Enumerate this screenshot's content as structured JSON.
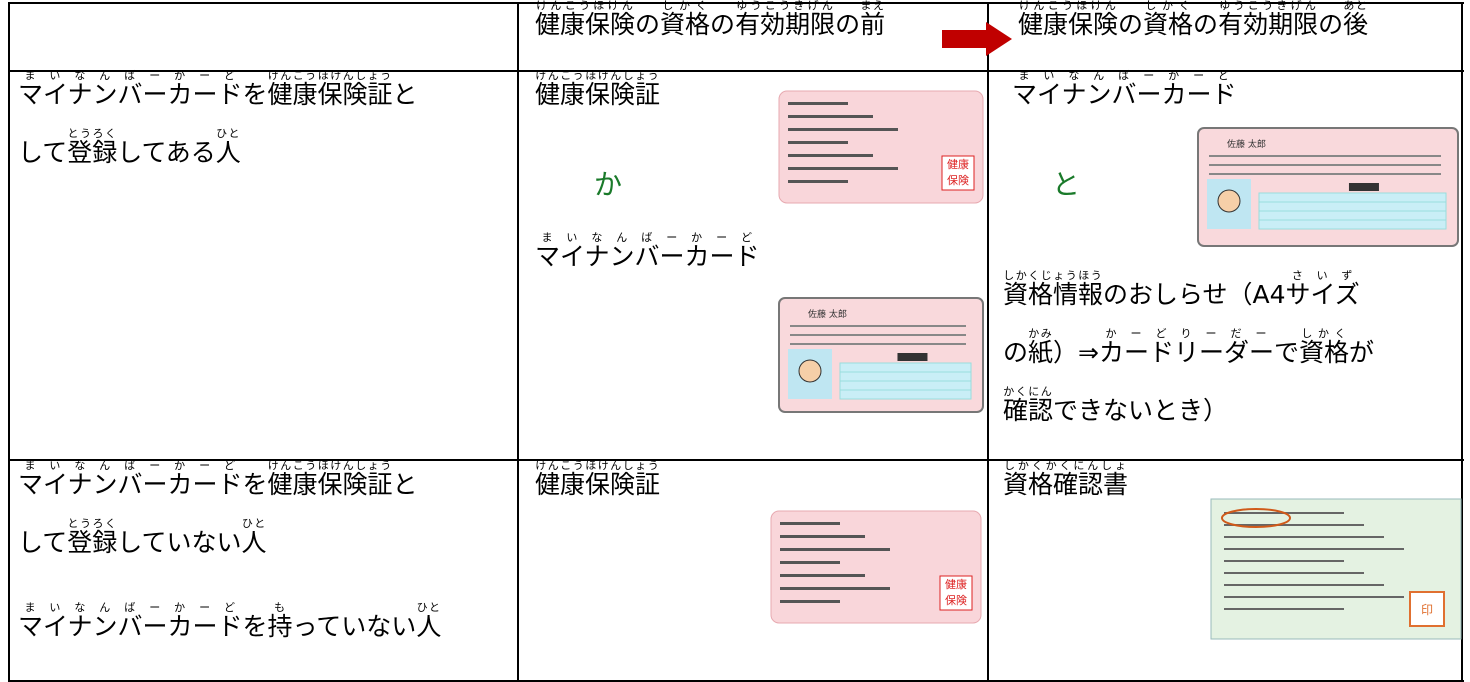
{
  "header": {
    "before": [
      [
        {
          "text": "健康保険",
          "ruby": "けんこうほけん"
        },
        {
          "text": "の"
        },
        {
          "text": "資格",
          "ruby": "しかく"
        },
        {
          "text": "の"
        },
        {
          "text": "有効期限",
          "ruby": "ゆうこうきげん"
        },
        {
          "text": "の"
        },
        {
          "text": "前",
          "ruby": "まえ"
        }
      ]
    ],
    "after": [
      [
        {
          "text": "健康保険",
          "ruby": "けんこうほけん"
        },
        {
          "text": "の"
        },
        {
          "text": "資格",
          "ruby": "しかく"
        },
        {
          "text": "の"
        },
        {
          "text": "有効期限",
          "ruby": "ゆうこうきげん"
        },
        {
          "text": "の"
        },
        {
          "text": "後",
          "ruby": "あと"
        }
      ]
    ]
  },
  "rows": [
    {
      "condition": [
        [
          {
            "text": "マイナンバーカード",
            "ruby": "まいなんばーかーど"
          },
          {
            "text": "を"
          },
          {
            "text": "健康保険証",
            "ruby": "けんこうほけんしょう"
          },
          {
            "text": "と"
          }
        ],
        [
          {
            "text": "して"
          },
          {
            "text": "登録",
            "ruby": "とうろく"
          },
          {
            "text": "してある"
          },
          {
            "text": "人",
            "ruby": "ひと"
          }
        ]
      ],
      "before": {
        "first": [
          [
            {
              "text": "健康保険証",
              "ruby": "けんこうほけんしょう"
            }
          ]
        ],
        "connector": "か",
        "second": [
          [
            {
              "text": "マイナンバーカード",
              "ruby": "まいなんばーかーど"
            }
          ]
        ]
      },
      "after": {
        "first": [
          [
            {
              "text": "マイナンバーカード",
              "ruby": "まいなんばーかーど"
            }
          ]
        ],
        "connector": "と",
        "note": [
          [
            {
              "text": "資格情報",
              "ruby": "しかくじょうほう"
            },
            {
              "text": "のおしらせ（A4"
            },
            {
              "text": "サイズ",
              "ruby": "さいず"
            }
          ],
          [
            {
              "text": "の"
            },
            {
              "text": "紙",
              "ruby": "かみ"
            },
            {
              "text": "）⇒"
            },
            {
              "text": "カードリーダー",
              "ruby": "かーどりーだー"
            },
            {
              "text": "で"
            },
            {
              "text": "資格",
              "ruby": "しかく"
            },
            {
              "text": "が"
            }
          ],
          [
            {
              "text": "確認",
              "ruby": "かくにん"
            },
            {
              "text": "できないとき）"
            }
          ]
        ]
      }
    },
    {
      "condition_a": [
        [
          {
            "text": "マイナンバーカード",
            "ruby": "まいなんばーかーど"
          },
          {
            "text": "を"
          },
          {
            "text": "健康保険証",
            "ruby": "けんこうほけんしょう"
          },
          {
            "text": "と"
          }
        ],
        [
          {
            "text": "して"
          },
          {
            "text": "登録",
            "ruby": "とうろく"
          },
          {
            "text": "していない"
          },
          {
            "text": "人",
            "ruby": "ひと"
          }
        ]
      ],
      "condition_b": [
        [
          {
            "text": "マイナンバーカード",
            "ruby": "まいなんばーかーど"
          },
          {
            "text": "を"
          },
          {
            "text": "持",
            "ruby": "も"
          },
          {
            "text": "っていない"
          },
          {
            "text": "人",
            "ruby": "ひと"
          }
        ]
      ],
      "before": {
        "first": [
          [
            {
              "text": "健康保険証",
              "ruby": "けんこうほけんしょう"
            }
          ]
        ]
      },
      "after": {
        "first": [
          [
            {
              "text": "資格確認書",
              "ruby": "しかくかくにんしょ"
            }
          ]
        ]
      }
    }
  ],
  "cards": {
    "health_stamp_top": "健康",
    "health_stamp_bottom": "保険",
    "mynumber_name": "佐藤 太郎",
    "certificate_seal": "印"
  }
}
